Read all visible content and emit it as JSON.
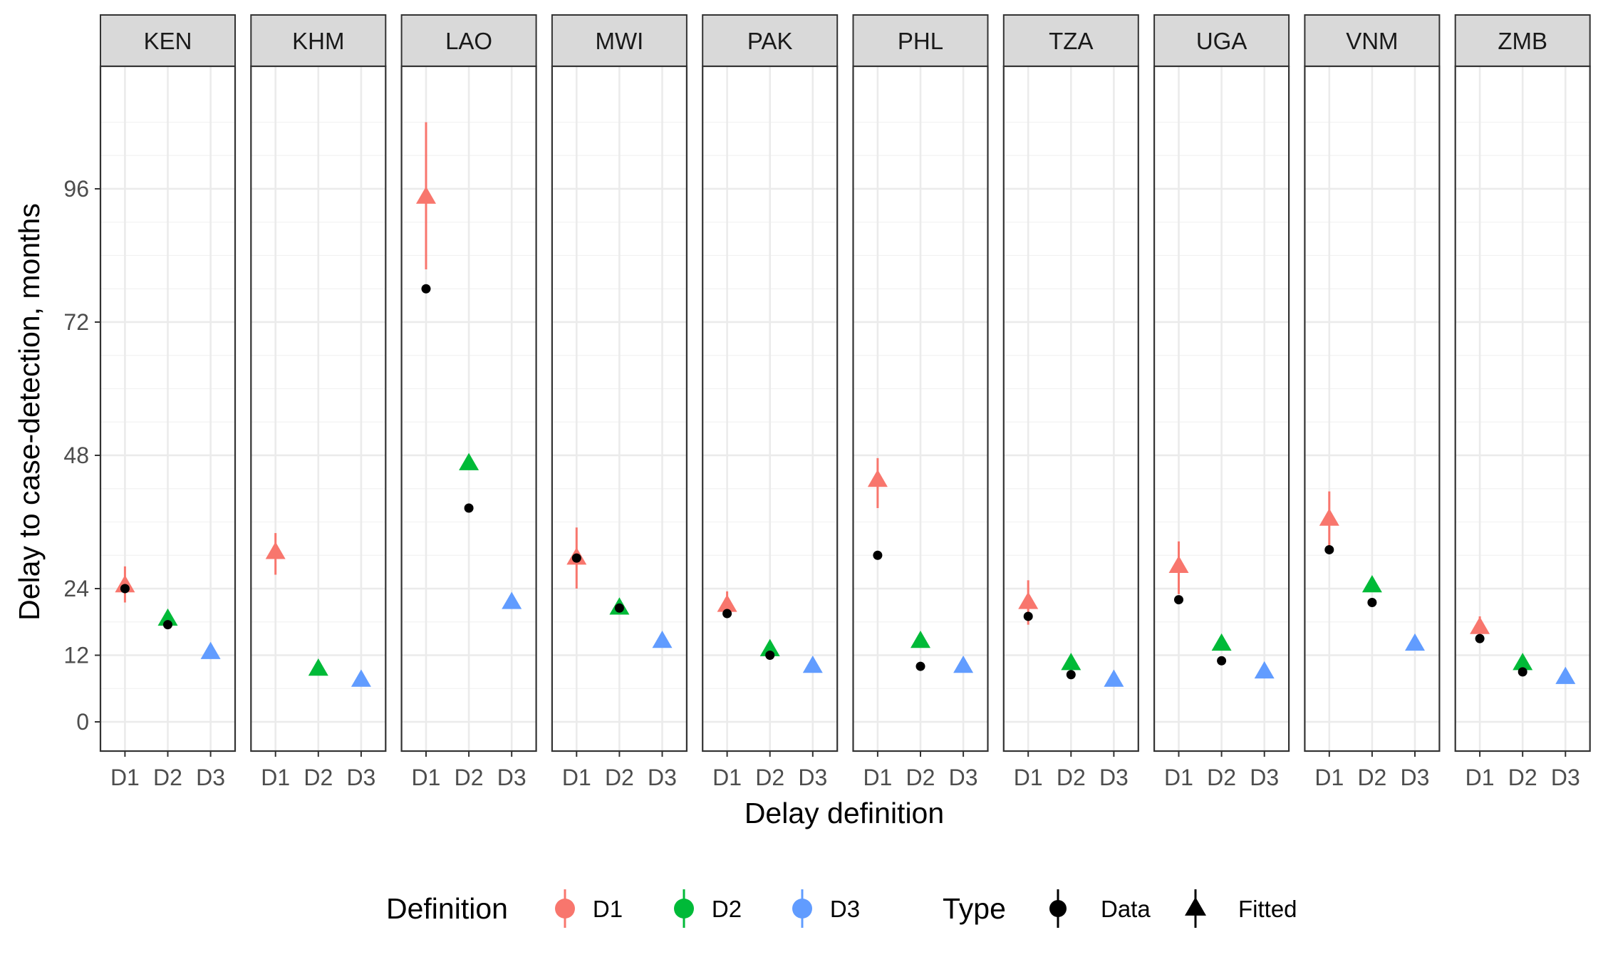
{
  "chart_data": {
    "type": "scatter",
    "title": "",
    "xlabel": "Delay definition",
    "ylabel": "Delay to case-detection, months",
    "ylim": [
      -5,
      115
    ],
    "yticks": [
      0,
      12,
      24,
      48,
      72,
      96
    ],
    "categories": [
      "D1",
      "D2",
      "D3"
    ],
    "grid": true,
    "legend_position": "bottom",
    "colors": {
      "D1": "#F8766D",
      "D2": "#00BA38",
      "D3": "#619CFF",
      "data_point": "#000000"
    },
    "panels": [
      {
        "name": "KEN",
        "fitted": [
          {
            "def": "D1",
            "value": 24.5,
            "lo": 21.5,
            "hi": 28
          },
          {
            "def": "D2",
            "value": 18.5,
            "lo": 17.5,
            "hi": 19.5
          },
          {
            "def": "D3",
            "value": 12.5,
            "lo": 12,
            "hi": 13
          }
        ],
        "data": [
          {
            "def": "D1",
            "value": 24
          },
          {
            "def": "D2",
            "value": 17.5
          }
        ]
      },
      {
        "name": "KHM",
        "fitted": [
          {
            "def": "D1",
            "value": 30.5,
            "lo": 26.5,
            "hi": 34
          },
          {
            "def": "D2",
            "value": 9.5,
            "lo": 9,
            "hi": 10
          },
          {
            "def": "D3",
            "value": 7.5,
            "lo": 7,
            "hi": 8
          }
        ],
        "data": []
      },
      {
        "name": "LAO",
        "fitted": [
          {
            "def": "D1",
            "value": 94.5,
            "lo": 81.5,
            "hi": 108
          },
          {
            "def": "D2",
            "value": 46.5,
            "lo": 45.5,
            "hi": 47.5
          },
          {
            "def": "D3",
            "value": 21.5,
            "lo": 21,
            "hi": 22
          }
        ],
        "data": [
          {
            "def": "D1",
            "value": 78
          },
          {
            "def": "D2",
            "value": 38.5
          }
        ]
      },
      {
        "name": "MWI",
        "fitted": [
          {
            "def": "D1",
            "value": 29.5,
            "lo": 24,
            "hi": 35
          },
          {
            "def": "D2",
            "value": 20.5,
            "lo": 19.5,
            "hi": 21.5
          },
          {
            "def": "D3",
            "value": 14.5,
            "lo": 14,
            "hi": 15
          }
        ],
        "data": [
          {
            "def": "D1",
            "value": 29.5
          },
          {
            "def": "D2",
            "value": 20.5
          }
        ]
      },
      {
        "name": "PAK",
        "fitted": [
          {
            "def": "D1",
            "value": 21,
            "lo": 19,
            "hi": 23.5
          },
          {
            "def": "D2",
            "value": 13,
            "lo": 12,
            "hi": 14
          },
          {
            "def": "D3",
            "value": 10,
            "lo": 9.5,
            "hi": 10.5
          }
        ],
        "data": [
          {
            "def": "D1",
            "value": 19.5
          },
          {
            "def": "D2",
            "value": 12
          }
        ]
      },
      {
        "name": "PHL",
        "fitted": [
          {
            "def": "D1",
            "value": 43.5,
            "lo": 38.5,
            "hi": 47.5
          },
          {
            "def": "D2",
            "value": 14.5,
            "lo": 14,
            "hi": 15
          },
          {
            "def": "D3",
            "value": 10,
            "lo": 9.5,
            "hi": 10.5
          }
        ],
        "data": [
          {
            "def": "D1",
            "value": 30
          },
          {
            "def": "D2",
            "value": 10
          }
        ]
      },
      {
        "name": "TZA",
        "fitted": [
          {
            "def": "D1",
            "value": 21.5,
            "lo": 17.5,
            "hi": 25.5
          },
          {
            "def": "D2",
            "value": 10.5,
            "lo": 10,
            "hi": 11
          },
          {
            "def": "D3",
            "value": 7.5,
            "lo": 7,
            "hi": 8
          }
        ],
        "data": [
          {
            "def": "D1",
            "value": 19
          },
          {
            "def": "D2",
            "value": 8.5
          }
        ]
      },
      {
        "name": "UGA",
        "fitted": [
          {
            "def": "D1",
            "value": 28,
            "lo": 23,
            "hi": 32.5
          },
          {
            "def": "D2",
            "value": 14,
            "lo": 13.5,
            "hi": 14.5
          },
          {
            "def": "D3",
            "value": 9,
            "lo": 8.5,
            "hi": 9.5
          }
        ],
        "data": [
          {
            "def": "D1",
            "value": 22
          },
          {
            "def": "D2",
            "value": 11
          }
        ]
      },
      {
        "name": "VNM",
        "fitted": [
          {
            "def": "D1",
            "value": 36.5,
            "lo": 31.5,
            "hi": 41.5
          },
          {
            "def": "D2",
            "value": 24.5,
            "lo": 23.5,
            "hi": 25.5
          },
          {
            "def": "D3",
            "value": 14,
            "lo": 13.5,
            "hi": 14.5
          }
        ],
        "data": [
          {
            "def": "D1",
            "value": 31
          },
          {
            "def": "D2",
            "value": 21.5
          }
        ]
      },
      {
        "name": "ZMB",
        "fitted": [
          {
            "def": "D1",
            "value": 17,
            "lo": 15,
            "hi": 19
          },
          {
            "def": "D2",
            "value": 10.5,
            "lo": 10,
            "hi": 11
          },
          {
            "def": "D3",
            "value": 8,
            "lo": 7.5,
            "hi": 8.5
          }
        ],
        "data": [
          {
            "def": "D1",
            "value": 15
          },
          {
            "def": "D2",
            "value": 9
          }
        ]
      }
    ],
    "legend": {
      "definition_title": "Definition",
      "definition_items": [
        "D1",
        "D2",
        "D3"
      ],
      "type_title": "Type",
      "type_items": [
        "Data",
        "Fitted"
      ]
    }
  }
}
